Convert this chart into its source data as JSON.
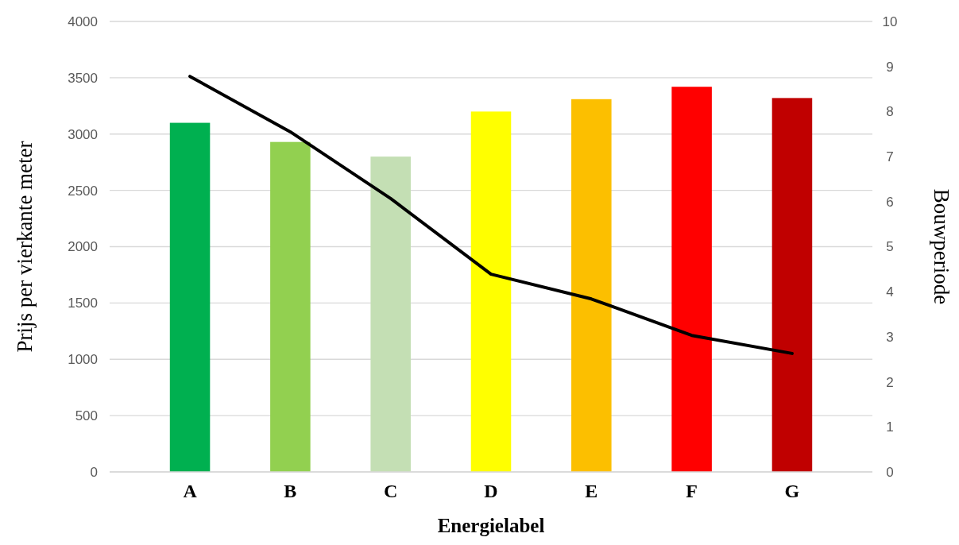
{
  "chart_data": {
    "type": "bar",
    "xlabel": "Energielabel",
    "ylabel": "Prijs per vierkante meter",
    "y2label": "Bouwperiode",
    "categories": [
      "A",
      "B",
      "C",
      "D",
      "E",
      "F",
      "G"
    ],
    "series": [
      {
        "colors": [
          "#00b050",
          "#92d050",
          "#c4dfb4",
          "#ffff00",
          "#fcbf00",
          "#ff0000",
          "#c00000"
        ],
        "values": [
          3100,
          2930,
          2800,
          3200,
          3310,
          3420,
          3320
        ]
      },
      {
        "type": "line",
        "axis": "y2",
        "color": "#000000",
        "values": [
          8.78,
          7.55,
          6.07,
          4.39,
          3.84,
          3.03,
          2.63
        ]
      }
    ],
    "ylim": [
      0,
      4000
    ],
    "yticks": [
      0,
      500,
      1000,
      1500,
      2000,
      2500,
      3000,
      3500,
      4000
    ],
    "y2lim": [
      0,
      10
    ],
    "y2ticks": [
      0,
      1,
      2,
      3,
      4,
      5,
      6,
      7,
      8,
      9,
      10
    ],
    "grid": "y",
    "marker": "none",
    "line_style": "solid"
  }
}
